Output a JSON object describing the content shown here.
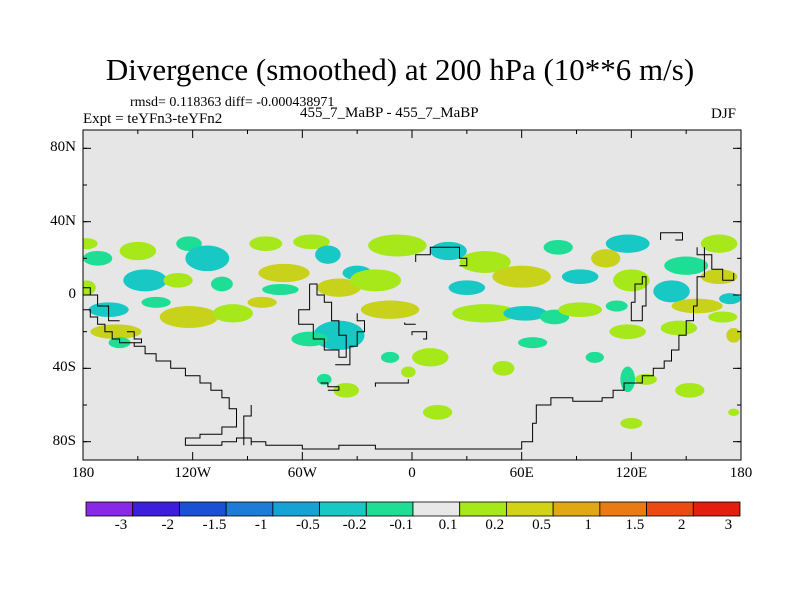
{
  "title": "Divergence (smoothed) at 200 hPa (10**6 m/s)",
  "stats": "rmsd= 0.118363 diff= -0.000438971",
  "experiment": "Expt = teYFn3-teYFn2",
  "runs": "455_7_MaBP - 455_7_MaBP",
  "season": "DJF",
  "y_axis": {
    "ticks": [
      "80N",
      "40N",
      "0",
      "40S",
      "80S"
    ],
    "values": [
      80,
      40,
      0,
      -40,
      -80
    ]
  },
  "x_axis": {
    "ticks": [
      "180",
      "120W",
      "60W",
      "0",
      "60E",
      "120E",
      "180"
    ],
    "values": [
      -180,
      -120,
      -60,
      0,
      60,
      120,
      180
    ]
  },
  "colorbar": {
    "labels": [
      "-3",
      "-2",
      "-1.5",
      "-1",
      "-0.5",
      "-0.2",
      "-0.1",
      "0.1",
      "0.2",
      "0.5",
      "1",
      "1.5",
      "2",
      "3"
    ],
    "colors": [
      "#8a28e8",
      "#3c1edc",
      "#1a50d6",
      "#1e7cd8",
      "#14a3d4",
      "#18c8c4",
      "#1ede96",
      "#e8e8e8",
      "#a6e81a",
      "#d2d218",
      "#e2a814",
      "#ea7a12",
      "#ec4a10",
      "#e41e0e"
    ]
  },
  "map": {
    "background": "#e6e6e6",
    "lat_range": [
      -90,
      90
    ],
    "lon_range": [
      -180,
      180
    ],
    "colors": {
      "cyan": "#18c8c4",
      "green": "#1ede96",
      "lime": "#a6e81a",
      "olive": "#c8d21a"
    },
    "blobs": [
      {
        "lon": -178,
        "lat": 28,
        "rlon": 6,
        "rlat": 3,
        "c": "lime"
      },
      {
        "lon": -172,
        "lat": 20,
        "rlon": 8,
        "rlat": 4,
        "c": "green"
      },
      {
        "lon": -178,
        "lat": 4,
        "rlon": 5,
        "rlat": 4,
        "c": "lime"
      },
      {
        "lon": -166,
        "lat": -8,
        "rlon": 11,
        "rlat": 4,
        "c": "cyan"
      },
      {
        "lon": -162,
        "lat": -20,
        "rlon": 14,
        "rlat": 4,
        "c": "olive"
      },
      {
        "lon": -150,
        "lat": 24,
        "rlon": 10,
        "rlat": 5,
        "c": "lime"
      },
      {
        "lon": -146,
        "lat": 8,
        "rlon": 12,
        "rlat": 6,
        "c": "cyan"
      },
      {
        "lon": -140,
        "lat": -4,
        "rlon": 8,
        "rlat": 3,
        "c": "green"
      },
      {
        "lon": -122,
        "lat": 28,
        "rlon": 7,
        "rlat": 4,
        "c": "green"
      },
      {
        "lon": -112,
        "lat": 20,
        "rlon": 12,
        "rlat": 7,
        "c": "cyan"
      },
      {
        "lon": -128,
        "lat": 8,
        "rlon": 8,
        "rlat": 4,
        "c": "lime"
      },
      {
        "lon": -104,
        "lat": 6,
        "rlon": 6,
        "rlat": 4,
        "c": "green"
      },
      {
        "lon": -122,
        "lat": -12,
        "rlon": 16,
        "rlat": 6,
        "c": "olive"
      },
      {
        "lon": -98,
        "lat": -10,
        "rlon": 11,
        "rlat": 5,
        "c": "lime"
      },
      {
        "lon": -80,
        "lat": 28,
        "rlon": 9,
        "rlat": 4,
        "c": "lime"
      },
      {
        "lon": -70,
        "lat": 12,
        "rlon": 14,
        "rlat": 5,
        "c": "olive"
      },
      {
        "lon": -72,
        "lat": 3,
        "rlon": 10,
        "rlat": 3,
        "c": "green"
      },
      {
        "lon": -82,
        "lat": -4,
        "rlon": 8,
        "rlat": 3,
        "c": "olive"
      },
      {
        "lon": -55,
        "lat": 29,
        "rlon": 10,
        "rlat": 4,
        "c": "lime"
      },
      {
        "lon": -46,
        "lat": 22,
        "rlon": 7,
        "rlat": 5,
        "c": "cyan"
      },
      {
        "lon": -40,
        "lat": 4,
        "rlon": 12,
        "rlat": 5,
        "c": "olive"
      },
      {
        "lon": -30,
        "lat": 12,
        "rlon": 8,
        "rlat": 4,
        "c": "cyan"
      },
      {
        "lon": -40,
        "lat": -22,
        "rlon": 14,
        "rlat": 8,
        "c": "cyan"
      },
      {
        "lon": -56,
        "lat": -24,
        "rlon": 10,
        "rlat": 4,
        "c": "green"
      },
      {
        "lon": -48,
        "lat": -46,
        "rlon": 4,
        "rlat": 3,
        "c": "green"
      },
      {
        "lon": -36,
        "lat": -52,
        "rlon": 7,
        "rlat": 4,
        "c": "lime"
      },
      {
        "lon": -8,
        "lat": 27,
        "rlon": 16,
        "rlat": 6,
        "c": "lime"
      },
      {
        "lon": -20,
        "lat": 8,
        "rlon": 14,
        "rlat": 6,
        "c": "lime"
      },
      {
        "lon": -12,
        "lat": -8,
        "rlon": 16,
        "rlat": 5,
        "c": "olive"
      },
      {
        "lon": -12,
        "lat": -34,
        "rlon": 5,
        "rlat": 3,
        "c": "green"
      },
      {
        "lon": 10,
        "lat": -34,
        "rlon": 10,
        "rlat": 5,
        "c": "lime"
      },
      {
        "lon": -2,
        "lat": -42,
        "rlon": 4,
        "rlat": 3,
        "c": "lime"
      },
      {
        "lon": 14,
        "lat": -64,
        "rlon": 8,
        "rlat": 4,
        "c": "lime"
      },
      {
        "lon": 20,
        "lat": 24,
        "rlon": 10,
        "rlat": 5,
        "c": "cyan"
      },
      {
        "lon": 40,
        "lat": 18,
        "rlon": 14,
        "rlat": 6,
        "c": "lime"
      },
      {
        "lon": 30,
        "lat": 4,
        "rlon": 10,
        "rlat": 4,
        "c": "cyan"
      },
      {
        "lon": 40,
        "lat": -10,
        "rlon": 18,
        "rlat": 5,
        "c": "lime"
      },
      {
        "lon": 60,
        "lat": 10,
        "rlon": 16,
        "rlat": 6,
        "c": "olive"
      },
      {
        "lon": 62,
        "lat": -10,
        "rlon": 12,
        "rlat": 4,
        "c": "cyan"
      },
      {
        "lon": 66,
        "lat": -26,
        "rlon": 8,
        "rlat": 3,
        "c": "green"
      },
      {
        "lon": 50,
        "lat": -40,
        "rlon": 6,
        "rlat": 4,
        "c": "lime"
      },
      {
        "lon": 78,
        "lat": -12,
        "rlon": 8,
        "rlat": 4,
        "c": "green"
      },
      {
        "lon": 80,
        "lat": 26,
        "rlon": 8,
        "rlat": 4,
        "c": "green"
      },
      {
        "lon": 92,
        "lat": 10,
        "rlon": 10,
        "rlat": 4,
        "c": "cyan"
      },
      {
        "lon": 92,
        "lat": -8,
        "rlon": 12,
        "rlat": 4,
        "c": "lime"
      },
      {
        "lon": 100,
        "lat": -34,
        "rlon": 5,
        "rlat": 3,
        "c": "green"
      },
      {
        "lon": 106,
        "lat": 20,
        "rlon": 8,
        "rlat": 5,
        "c": "olive"
      },
      {
        "lon": 118,
        "lat": 28,
        "rlon": 12,
        "rlat": 5,
        "c": "cyan"
      },
      {
        "lon": 120,
        "lat": 8,
        "rlon": 10,
        "rlat": 6,
        "c": "lime"
      },
      {
        "lon": 112,
        "lat": -6,
        "rlon": 6,
        "rlat": 3,
        "c": "green"
      },
      {
        "lon": 118,
        "lat": -20,
        "rlon": 10,
        "rlat": 4,
        "c": "lime"
      },
      {
        "lon": 118,
        "lat": -46,
        "rlon": 4,
        "rlat": 7,
        "c": "green"
      },
      {
        "lon": 128,
        "lat": -46,
        "rlon": 6,
        "rlat": 3,
        "c": "lime"
      },
      {
        "lon": 120,
        "lat": -70,
        "rlon": 6,
        "rlat": 3,
        "c": "lime"
      },
      {
        "lon": 142,
        "lat": 2,
        "rlon": 10,
        "rlat": 6,
        "c": "cyan"
      },
      {
        "lon": 150,
        "lat": 16,
        "rlon": 12,
        "rlat": 5,
        "c": "green"
      },
      {
        "lon": 156,
        "lat": -6,
        "rlon": 14,
        "rlat": 4,
        "c": "olive"
      },
      {
        "lon": 146,
        "lat": -18,
        "rlon": 10,
        "rlat": 4,
        "c": "lime"
      },
      {
        "lon": 168,
        "lat": 28,
        "rlon": 10,
        "rlat": 5,
        "c": "lime"
      },
      {
        "lon": 168,
        "lat": 10,
        "rlon": 10,
        "rlat": 4,
        "c": "olive"
      },
      {
        "lon": 174,
        "lat": -2,
        "rlon": 6,
        "rlat": 3,
        "c": "cyan"
      },
      {
        "lon": 170,
        "lat": -12,
        "rlon": 8,
        "rlat": 3,
        "c": "lime"
      },
      {
        "lon": 176,
        "lat": -22,
        "rlon": 4,
        "rlat": 4,
        "c": "olive"
      },
      {
        "lon": 152,
        "lat": -52,
        "rlon": 8,
        "rlat": 4,
        "c": "lime"
      },
      {
        "lon": 176,
        "lat": -64,
        "rlon": 3,
        "rlat": 2,
        "c": "lime"
      },
      {
        "lon": -160,
        "lat": -26,
        "rlon": 6,
        "rlat": 3,
        "c": "green"
      }
    ],
    "coastlines": [
      [
        [
          -180,
          -8
        ],
        [
          -176,
          -8
        ],
        [
          -176,
          -12
        ],
        [
          -172,
          -12
        ],
        [
          -172,
          -16
        ],
        [
          -168,
          -16
        ],
        [
          -168,
          -20
        ],
        [
          -164,
          -20
        ],
        [
          -164,
          -24
        ],
        [
          -160,
          -24
        ],
        [
          -160,
          -26
        ],
        [
          -152,
          -26
        ],
        [
          -152,
          -28
        ],
        [
          -146,
          -28
        ],
        [
          -146,
          -32
        ],
        [
          -140,
          -32
        ],
        [
          -140,
          -36
        ],
        [
          -132,
          -36
        ],
        [
          -132,
          -40
        ],
        [
          -124,
          -40
        ],
        [
          -124,
          -44
        ],
        [
          -116,
          -44
        ],
        [
          -116,
          -48
        ],
        [
          -110,
          -48
        ],
        [
          -110,
          -52
        ],
        [
          -104,
          -52
        ],
        [
          -104,
          -56
        ],
        [
          -100,
          -56
        ],
        [
          -100,
          -62
        ],
        [
          -96,
          -62
        ],
        [
          -96,
          -72
        ],
        [
          -104,
          -72
        ],
        [
          -104,
          -76
        ],
        [
          -116,
          -76
        ],
        [
          -116,
          -78
        ],
        [
          -124,
          -78
        ],
        [
          -124,
          -82
        ],
        [
          -104,
          -82
        ],
        [
          -104,
          -80
        ],
        [
          -96,
          -80
        ],
        [
          -96,
          -78
        ],
        [
          -92,
          -78
        ],
        [
          -92,
          -66
        ],
        [
          -88,
          -66
        ],
        [
          -88,
          -60
        ]
      ],
      [
        [
          -180,
          4
        ],
        [
          -176,
          4
        ],
        [
          -176,
          0
        ],
        [
          -172,
          0
        ],
        [
          -172,
          -6
        ],
        [
          -166,
          -6
        ],
        [
          -166,
          -14
        ],
        [
          -160,
          -14
        ]
      ],
      [
        [
          -156,
          -20
        ],
        [
          -152,
          -20
        ],
        [
          -152,
          -24
        ],
        [
          -148,
          -24
        ],
        [
          -148,
          -26
        ],
        [
          -152,
          -26
        ]
      ],
      [
        [
          -92,
          -82
        ],
        [
          -92,
          -78
        ],
        [
          -88,
          -78
        ],
        [
          -88,
          -82
        ],
        [
          -88,
          -80
        ],
        [
          -80,
          -80
        ],
        [
          -80,
          -82
        ],
        [
          -60,
          -82
        ],
        [
          -60,
          -84
        ],
        [
          -40,
          -84
        ],
        [
          -40,
          -82
        ],
        [
          -20,
          -82
        ],
        [
          -20,
          -84
        ],
        [
          60,
          -84
        ],
        [
          60,
          -80
        ],
        [
          66,
          -80
        ],
        [
          66,
          -70
        ],
        [
          68,
          -70
        ],
        [
          68,
          -60
        ],
        [
          76,
          -60
        ],
        [
          76,
          -56
        ],
        [
          88,
          -56
        ],
        [
          88,
          -58
        ],
        [
          104,
          -58
        ],
        [
          104,
          -56
        ],
        [
          110,
          -56
        ],
        [
          110,
          -52
        ],
        [
          116,
          -52
        ],
        [
          116,
          -48
        ],
        [
          126,
          -48
        ],
        [
          126,
          -44
        ],
        [
          132,
          -44
        ],
        [
          132,
          -40
        ],
        [
          138,
          -40
        ],
        [
          138,
          -36
        ],
        [
          142,
          -36
        ],
        [
          142,
          -30
        ],
        [
          146,
          -30
        ],
        [
          146,
          -22
        ],
        [
          150,
          -22
        ],
        [
          150,
          -14
        ],
        [
          154,
          -14
        ],
        [
          154,
          -6
        ],
        [
          156,
          -6
        ],
        [
          156,
          10
        ],
        [
          160,
          10
        ],
        [
          160,
          26
        ]
      ],
      [
        [
          -56,
          6
        ],
        [
          -56,
          -8
        ],
        [
          -62,
          -8
        ],
        [
          -62,
          -16
        ],
        [
          -54,
          -16
        ],
        [
          -54,
          -24
        ],
        [
          -48,
          -24
        ],
        [
          -48,
          -30
        ],
        [
          -40,
          -30
        ],
        [
          -40,
          -34
        ],
        [
          -36,
          -34
        ],
        [
          -36,
          -30
        ],
        [
          -36,
          -22
        ],
        [
          -40,
          -22
        ],
        [
          -40,
          -14
        ],
        [
          -44,
          -14
        ],
        [
          -44,
          -4
        ],
        [
          -48,
          -4
        ],
        [
          -48,
          0
        ],
        [
          -52,
          0
        ],
        [
          -52,
          6
        ],
        [
          -56,
          6
        ]
      ],
      [
        [
          -30,
          -10
        ],
        [
          -30,
          -14
        ],
        [
          -26,
          -14
        ],
        [
          -26,
          -20
        ],
        [
          -30,
          -20
        ],
        [
          -30,
          -28
        ],
        [
          -34,
          -28
        ],
        [
          -34,
          -38
        ],
        [
          -42,
          -38
        ]
      ],
      [
        [
          -50,
          -48
        ],
        [
          -46,
          -48
        ],
        [
          -46,
          -50
        ],
        [
          -40,
          -50
        ],
        [
          -40,
          -52
        ],
        [
          -46,
          -52
        ]
      ],
      [
        [
          -20,
          -50
        ],
        [
          -20,
          -48
        ],
        [
          -2,
          -48
        ],
        [
          -2,
          -46
        ]
      ],
      [
        [
          0,
          -22
        ],
        [
          0,
          -20
        ],
        [
          8,
          -20
        ],
        [
          8,
          -24
        ],
        [
          6,
          -24
        ]
      ],
      [
        [
          2,
          18
        ],
        [
          2,
          22
        ],
        [
          10,
          22
        ],
        [
          10,
          26
        ],
        [
          26,
          26
        ],
        [
          26,
          20
        ],
        [
          30,
          20
        ],
        [
          30,
          16
        ],
        [
          26,
          16
        ]
      ],
      [
        [
          120,
          -4
        ],
        [
          120,
          -14
        ],
        [
          126,
          -14
        ],
        [
          126,
          -6
        ],
        [
          128,
          -6
        ],
        [
          128,
          10
        ],
        [
          126,
          10
        ],
        [
          126,
          6
        ],
        [
          122,
          6
        ],
        [
          122,
          -4
        ],
        [
          120,
          -4
        ]
      ],
      [
        [
          136,
          30
        ],
        [
          136,
          34
        ],
        [
          148,
          34
        ],
        [
          148,
          30
        ],
        [
          144,
          30
        ]
      ],
      [
        [
          156,
          26
        ],
        [
          156,
          22
        ],
        [
          164,
          22
        ],
        [
          164,
          14
        ],
        [
          170,
          14
        ],
        [
          170,
          8
        ],
        [
          176,
          8
        ],
        [
          176,
          12
        ]
      ],
      [
        [
          -4,
          -15
        ],
        [
          -4,
          -16
        ],
        [
          2,
          -16
        ]
      ]
    ]
  }
}
